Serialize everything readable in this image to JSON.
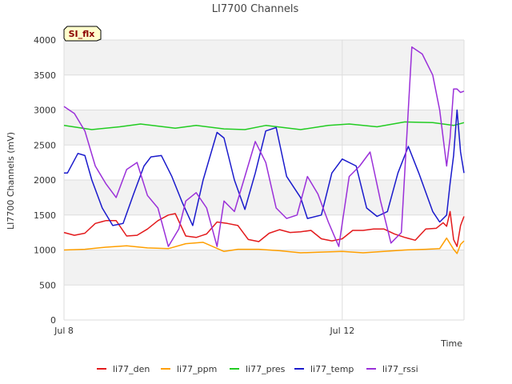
{
  "chart_data": {
    "type": "line",
    "title": "LI7700 Channels",
    "badge": "SI_flx",
    "xlabel": "Time",
    "ylabel": "LI7700 Channels (mV)",
    "ylim": [
      0,
      4000
    ],
    "yticks": [
      0,
      500,
      1000,
      1500,
      2000,
      2500,
      3000,
      3500,
      4000
    ],
    "xlim": [
      0,
      5.75
    ],
    "xticks": [
      {
        "value": 0,
        "label": "Jul 8"
      },
      {
        "value": 4,
        "label": "Jul 12"
      }
    ],
    "grid": true,
    "legend_position": "bottom",
    "series": [
      {
        "name": "li77_den",
        "color": "#e31a1c",
        "x": [
          0,
          0.15,
          0.3,
          0.45,
          0.6,
          0.75,
          0.9,
          1.05,
          1.2,
          1.35,
          1.5,
          1.6,
          1.75,
          1.9,
          2.05,
          2.2,
          2.35,
          2.5,
          2.65,
          2.8,
          2.95,
          3.1,
          3.25,
          3.4,
          3.55,
          3.7,
          3.85,
          4.0,
          4.15,
          4.3,
          4.45,
          4.6,
          4.75,
          4.9,
          5.05,
          5.2,
          5.35,
          5.45,
          5.5,
          5.55,
          5.6,
          5.65,
          5.7,
          5.75
        ],
        "y": [
          1250,
          1210,
          1240,
          1380,
          1420,
          1420,
          1200,
          1210,
          1300,
          1420,
          1500,
          1520,
          1200,
          1180,
          1230,
          1400,
          1380,
          1350,
          1150,
          1120,
          1240,
          1290,
          1250,
          1260,
          1280,
          1160,
          1130,
          1160,
          1280,
          1280,
          1300,
          1300,
          1230,
          1180,
          1140,
          1300,
          1310,
          1390,
          1340,
          1550,
          1150,
          1050,
          1350,
          1480
        ]
      },
      {
        "name": "li77_ppm",
        "color": "#ff9f00",
        "x": [
          0,
          0.3,
          0.6,
          0.9,
          1.2,
          1.5,
          1.75,
          2.0,
          2.3,
          2.5,
          2.8,
          3.1,
          3.4,
          3.7,
          4.0,
          4.3,
          4.6,
          4.9,
          5.2,
          5.4,
          5.5,
          5.6,
          5.65,
          5.7,
          5.75
        ],
        "y": [
          1000,
          1010,
          1040,
          1060,
          1030,
          1020,
          1090,
          1110,
          980,
          1010,
          1010,
          990,
          960,
          970,
          980,
          960,
          980,
          1000,
          1010,
          1020,
          1170,
          1010,
          950,
          1080,
          1130
        ]
      },
      {
        "name": "li77_pres",
        "color": "#22cc22",
        "x": [
          0,
          0.4,
          0.8,
          1.1,
          1.6,
          1.9,
          2.3,
          2.6,
          2.9,
          3.4,
          3.8,
          4.1,
          4.5,
          4.9,
          5.3,
          5.6,
          5.75
        ],
        "y": [
          2780,
          2720,
          2760,
          2800,
          2740,
          2780,
          2730,
          2720,
          2780,
          2720,
          2780,
          2800,
          2760,
          2830,
          2820,
          2780,
          2820
        ]
      },
      {
        "name": "li77_temp",
        "color": "#1a1acc",
        "x": [
          0,
          0.05,
          0.2,
          0.3,
          0.4,
          0.55,
          0.7,
          0.85,
          1.0,
          1.15,
          1.25,
          1.4,
          1.55,
          1.7,
          1.85,
          2.0,
          2.2,
          2.3,
          2.45,
          2.6,
          2.75,
          2.9,
          3.05,
          3.2,
          3.4,
          3.5,
          3.7,
          3.85,
          4.0,
          4.2,
          4.35,
          4.5,
          4.65,
          4.8,
          4.95,
          5.1,
          5.3,
          5.4,
          5.5,
          5.55,
          5.6,
          5.65,
          5.7,
          5.75
        ],
        "y": [
          2100,
          2100,
          2380,
          2350,
          2000,
          1600,
          1350,
          1380,
          1800,
          2200,
          2330,
          2350,
          2050,
          1680,
          1350,
          2000,
          2680,
          2600,
          2000,
          1580,
          2100,
          2700,
          2750,
          2050,
          1750,
          1450,
          1500,
          2100,
          2300,
          2200,
          1600,
          1480,
          1550,
          2100,
          2480,
          2100,
          1550,
          1400,
          1500,
          1950,
          2350,
          3000,
          2400,
          2100
        ]
      },
      {
        "name": "li77_rssi",
        "color": "#9b30d9",
        "x": [
          0,
          0.15,
          0.3,
          0.45,
          0.6,
          0.75,
          0.9,
          1.05,
          1.2,
          1.35,
          1.5,
          1.65,
          1.75,
          1.9,
          2.05,
          2.2,
          2.3,
          2.45,
          2.6,
          2.75,
          2.9,
          3.05,
          3.2,
          3.35,
          3.5,
          3.65,
          3.8,
          3.95,
          4.1,
          4.25,
          4.4,
          4.55,
          4.7,
          4.85,
          5.0,
          5.15,
          5.3,
          5.4,
          5.5,
          5.55,
          5.6,
          5.65,
          5.7,
          5.75
        ],
        "y": [
          3050,
          2950,
          2700,
          2200,
          1950,
          1750,
          2150,
          2250,
          1780,
          1600,
          1050,
          1300,
          1700,
          1820,
          1600,
          1050,
          1700,
          1550,
          2050,
          2550,
          2250,
          1600,
          1450,
          1500,
          2050,
          1800,
          1400,
          1050,
          2050,
          2200,
          2400,
          1700,
          1100,
          1250,
          3900,
          3800,
          3500,
          3000,
          2200,
          2600,
          3300,
          3300,
          3250,
          3270
        ]
      }
    ]
  }
}
